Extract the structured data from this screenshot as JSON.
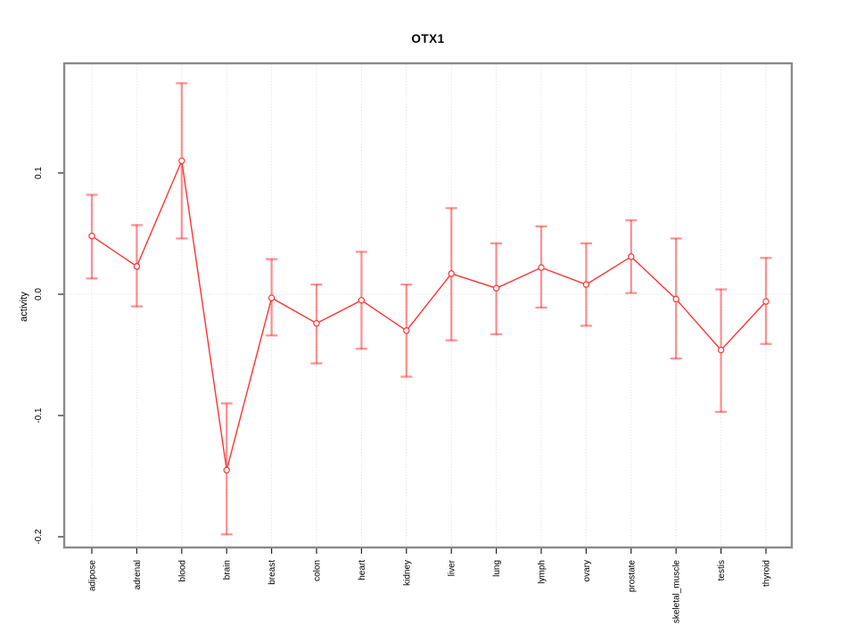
{
  "chart_data": {
    "type": "line",
    "title": "OTX1",
    "xlabel": "",
    "ylabel": "activity",
    "categories": [
      "adipose",
      "adrenal",
      "blood",
      "brain",
      "breast",
      "colon",
      "heart",
      "kidney",
      "liver",
      "lung",
      "lymph",
      "ovary",
      "prostate",
      "skeletal_muscle",
      "testis",
      "thyroid"
    ],
    "series": [
      {
        "name": "activity",
        "values": [
          0.048,
          0.023,
          0.11,
          -0.145,
          -0.003,
          -0.024,
          -0.005,
          -0.03,
          0.017,
          0.005,
          0.022,
          0.008,
          0.031,
          -0.004,
          -0.046,
          -0.006
        ],
        "error_high": [
          0.082,
          0.057,
          0.174,
          -0.09,
          0.029,
          0.008,
          0.035,
          0.008,
          0.071,
          0.042,
          0.056,
          0.042,
          0.061,
          0.046,
          0.004,
          0.03
        ],
        "error_low": [
          0.013,
          -0.01,
          0.046,
          -0.198,
          -0.034,
          -0.057,
          -0.045,
          -0.068,
          -0.038,
          -0.033,
          -0.011,
          -0.026,
          0.001,
          -0.053,
          -0.097,
          -0.041
        ]
      }
    ],
    "yticks": [
      0.1,
      0.0,
      -0.1,
      -0.2
    ],
    "ytick_labels": [
      "0.1",
      "0.0",
      "-0.1",
      "-0.2"
    ],
    "ylim": [
      -0.209,
      0.19
    ],
    "grid": "vertical dotted line at each category; horizontal dotted line at 0.0",
    "legend": "none",
    "colors": {
      "line": "#FF3333",
      "point_stroke": "#FF3333",
      "point_fill": "#FFFFFF",
      "error_bar": "#FF0000",
      "gridline": "#DDDDDD",
      "box": "#8A8A8A",
      "tick": "#222222",
      "background": "#FFFFFF"
    }
  }
}
